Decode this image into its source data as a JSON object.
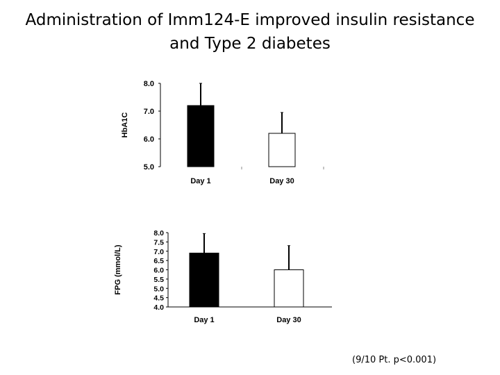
{
  "title": {
    "line1": "Administration of Imm124-E improved insulin resistance",
    "line2": "and Type 2 diabetes"
  },
  "footnote": "(9/10 Pt. p<0.001)",
  "colors": {
    "day1_fill": "#000000",
    "day30_fill": "#ffffff",
    "stroke": "#000000"
  },
  "chart_data": [
    {
      "type": "bar",
      "ylabel": "HbA1C",
      "xlabel": "",
      "categories": [
        "Day 1",
        "Day 30"
      ],
      "values": [
        7.2,
        6.2
      ],
      "error_upper": [
        8.0,
        6.95
      ],
      "ylim": [
        5.0,
        8.0
      ],
      "yticks": [
        "5.0",
        "6.0",
        "7.0",
        "8.0"
      ],
      "grid": false
    },
    {
      "type": "bar",
      "ylabel": "FPG (mmol/L)",
      "xlabel": "",
      "categories": [
        "Day 1",
        "Day 30"
      ],
      "values": [
        6.9,
        6.0
      ],
      "error_upper": [
        7.95,
        7.3
      ],
      "ylim": [
        4.0,
        8.0
      ],
      "yticks": [
        "4.0",
        "4.5",
        "5.0",
        "5.5",
        "6.0",
        "6.5",
        "7.0",
        "7.5",
        "8.0"
      ],
      "grid": false
    }
  ]
}
